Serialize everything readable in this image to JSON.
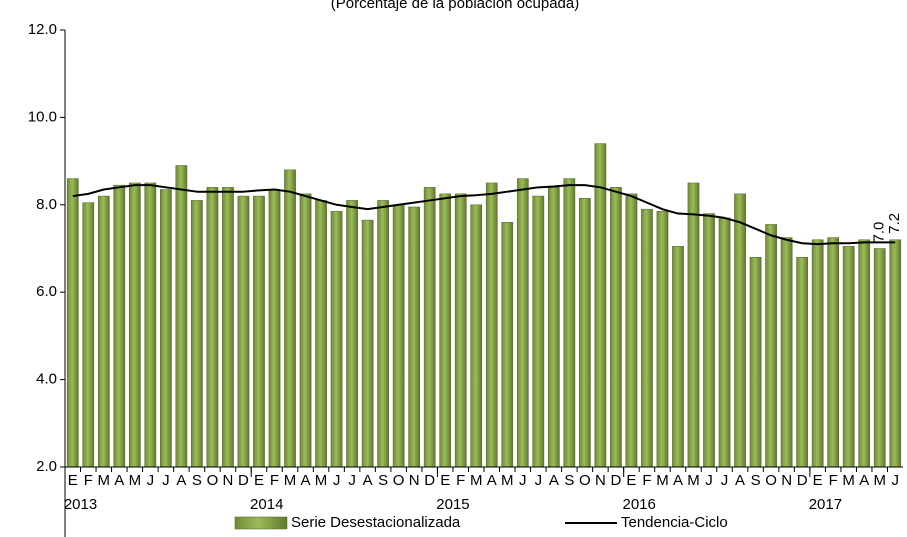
{
  "chart_data": {
    "type": "bar",
    "subtitle": "(Porcentaje de la población ocupada)",
    "categories": [
      "E",
      "F",
      "M",
      "A",
      "M",
      "J",
      "J",
      "A",
      "S",
      "O",
      "N",
      "D",
      "E",
      "F",
      "M",
      "A",
      "M",
      "J",
      "J",
      "A",
      "S",
      "O",
      "N",
      "D",
      "E",
      "F",
      "M",
      "A",
      "M",
      "J",
      "J",
      "A",
      "S",
      "O",
      "N",
      "D",
      "E",
      "F",
      "M",
      "A",
      "M",
      "J",
      "J",
      "A",
      "S",
      "O",
      "N",
      "D",
      "E",
      "F",
      "M",
      "A",
      "M",
      "J"
    ],
    "year_labels": [
      "2013",
      "2014",
      "2015",
      "2016",
      "2017"
    ],
    "ylim": [
      2,
      12
    ],
    "yticks": [
      {
        "value": 2,
        "label": "2.0"
      },
      {
        "value": 4,
        "label": "4.0"
      },
      {
        "value": 6,
        "label": "6.0"
      },
      {
        "value": 8,
        "label": "8.0"
      },
      {
        "value": 10,
        "label": "10.0"
      },
      {
        "value": 12,
        "label": "12.0"
      }
    ],
    "grid": false,
    "legend": "bottom",
    "series": [
      {
        "name": "Serie Desestacionalizada",
        "type": "bar",
        "color": "#9bbb59",
        "values": [
          8.6,
          8.05,
          8.2,
          8.45,
          8.5,
          8.5,
          8.35,
          8.9,
          8.1,
          8.4,
          8.4,
          8.2,
          8.2,
          8.35,
          8.8,
          8.25,
          8.1,
          7.85,
          8.1,
          7.65,
          8.1,
          8.0,
          7.95,
          8.4,
          8.25,
          8.25,
          8.0,
          8.5,
          7.6,
          8.6,
          8.2,
          8.4,
          8.6,
          8.15,
          9.4,
          8.4,
          8.25,
          7.9,
          7.85,
          7.05,
          8.5,
          7.8,
          7.7,
          8.25,
          6.8,
          7.55,
          7.25,
          6.8,
          7.2,
          7.25,
          7.05,
          7.2,
          7.0,
          7.2
        ],
        "value_labels": [
          null,
          null,
          null,
          null,
          null,
          null,
          null,
          null,
          null,
          null,
          null,
          null,
          null,
          null,
          null,
          null,
          null,
          null,
          null,
          null,
          null,
          null,
          null,
          null,
          null,
          null,
          null,
          null,
          null,
          null,
          null,
          null,
          null,
          null,
          null,
          null,
          null,
          null,
          null,
          null,
          null,
          null,
          null,
          null,
          null,
          null,
          null,
          null,
          null,
          null,
          null,
          null,
          "7.0",
          "7.2"
        ]
      },
      {
        "name": "Tendencia-Ciclo",
        "type": "line",
        "color": "#000000",
        "values": [
          8.2,
          8.25,
          8.35,
          8.4,
          8.45,
          8.45,
          8.4,
          8.35,
          8.3,
          8.3,
          8.3,
          8.3,
          8.33,
          8.35,
          8.3,
          8.2,
          8.1,
          8.0,
          7.95,
          7.9,
          7.95,
          8.0,
          8.05,
          8.1,
          8.15,
          8.2,
          8.22,
          8.25,
          8.3,
          8.35,
          8.4,
          8.42,
          8.45,
          8.45,
          8.4,
          8.3,
          8.2,
          8.05,
          7.9,
          7.8,
          7.78,
          7.75,
          7.7,
          7.6,
          7.45,
          7.3,
          7.2,
          7.12,
          7.1,
          7.12,
          7.12,
          7.14,
          7.14,
          7.14
        ]
      }
    ]
  }
}
